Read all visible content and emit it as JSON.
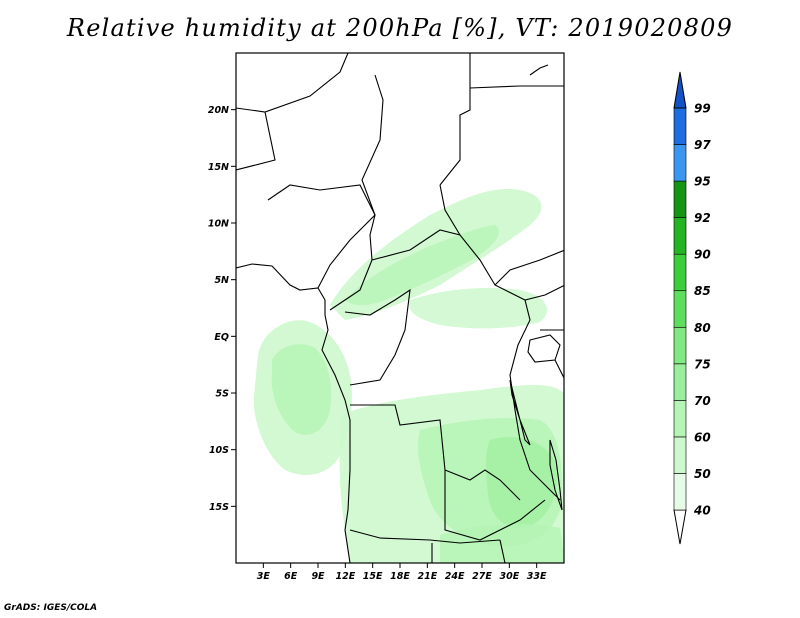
{
  "title": "Relative humidity at 200hPa [%], VT: 2019020809",
  "credit": "GrADS: IGES/COLA",
  "map": {
    "lon_range": [
      0,
      36
    ],
    "lat_range": [
      -20,
      25
    ],
    "lat_ticks": [
      {
        "value": 20,
        "label": "20N"
      },
      {
        "value": 15,
        "label": "15N"
      },
      {
        "value": 10,
        "label": "10N"
      },
      {
        "value": 5,
        "label": "5N"
      },
      {
        "value": 0,
        "label": "EQ"
      },
      {
        "value": -5,
        "label": "5S"
      },
      {
        "value": -10,
        "label": "10S"
      },
      {
        "value": -15,
        "label": "15S"
      }
    ],
    "lon_ticks": [
      {
        "value": 3,
        "label": "3E"
      },
      {
        "value": 6,
        "label": "6E"
      },
      {
        "value": 9,
        "label": "9E"
      },
      {
        "value": 12,
        "label": "12E"
      },
      {
        "value": 15,
        "label": "15E"
      },
      {
        "value": 18,
        "label": "18E"
      },
      {
        "value": 21,
        "label": "21E"
      },
      {
        "value": 24,
        "label": "24E"
      },
      {
        "value": 27,
        "label": "27E"
      },
      {
        "value": 30,
        "label": "30E"
      },
      {
        "value": 33,
        "label": "33E"
      }
    ]
  },
  "colorbar": {
    "levels": [
      {
        "label": "40",
        "color": "#e6fce6"
      },
      {
        "label": "50",
        "color": "#cdf8cd"
      },
      {
        "label": "60",
        "color": "#b4f4b4"
      },
      {
        "label": "70",
        "color": "#9bee9b"
      },
      {
        "label": "75",
        "color": "#82e882"
      },
      {
        "label": "80",
        "color": "#5ede5e"
      },
      {
        "label": "85",
        "color": "#3cce3c"
      },
      {
        "label": "90",
        "color": "#24b424"
      },
      {
        "label": "92",
        "color": "#149614"
      },
      {
        "label": "95",
        "color": "#3c96f0"
      },
      {
        "label": "97",
        "color": "#1e6ee0"
      },
      {
        "label": "99",
        "color": "#1450c8"
      }
    ],
    "below_color": "#ffffff",
    "above_color": "#1450c8"
  }
}
